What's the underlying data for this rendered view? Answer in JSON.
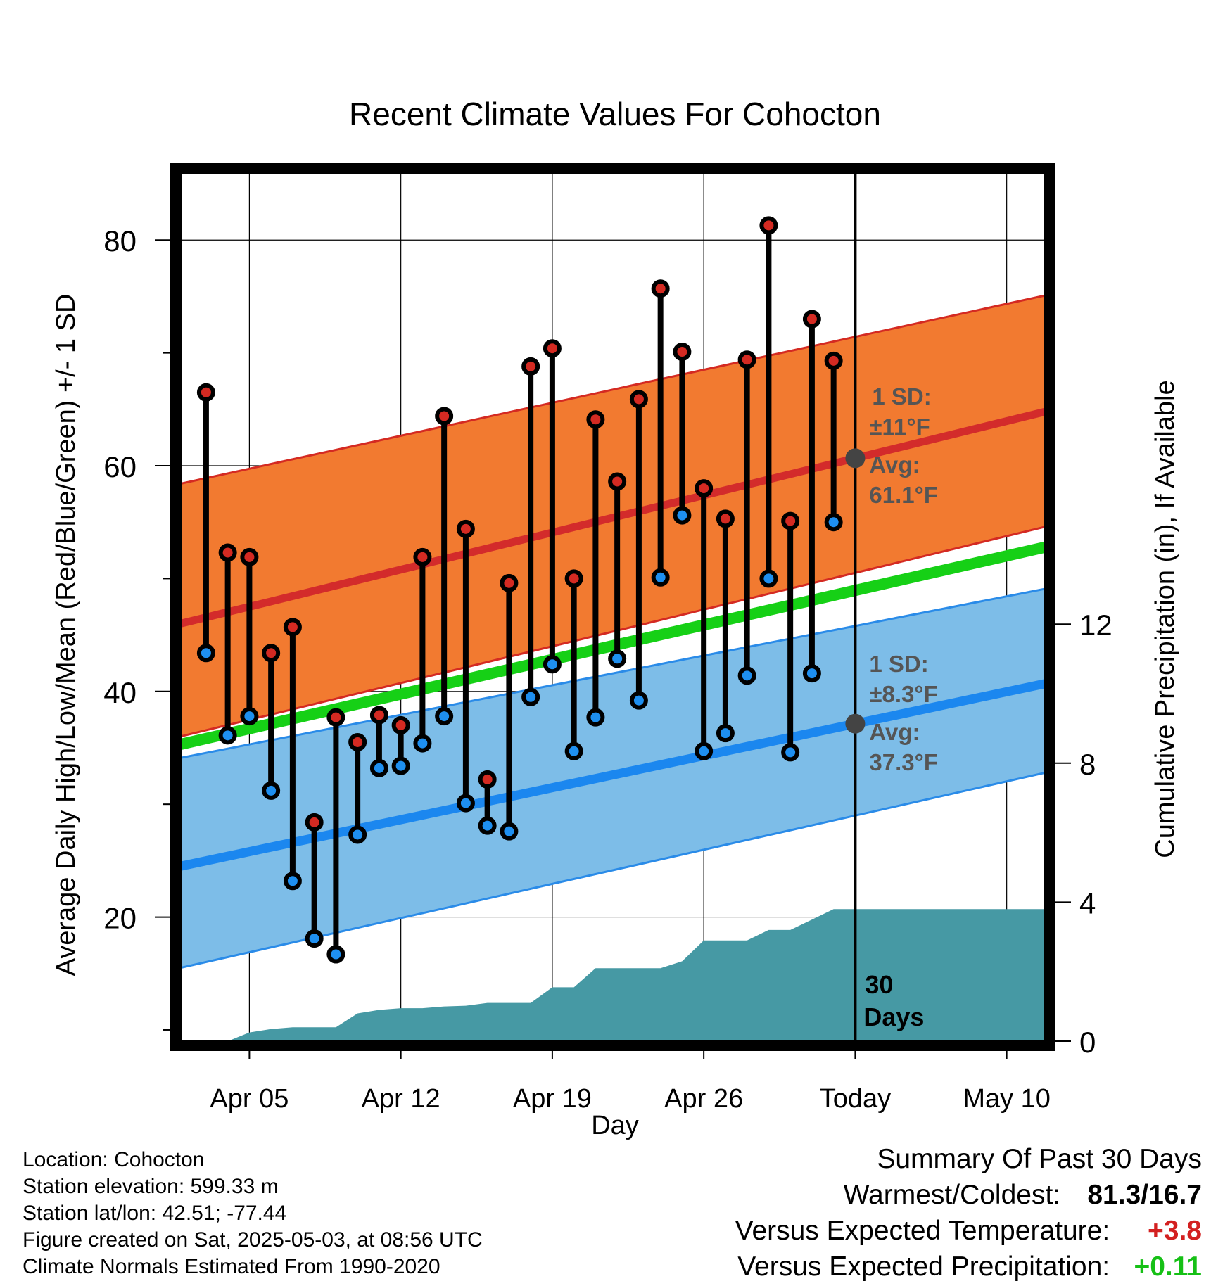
{
  "title": "Recent Climate Values For Cohocton",
  "chart_data": {
    "type": "line",
    "title": "Recent Climate Values For Cohocton",
    "xlabel": "Day",
    "ylabel_left": "Average Daily High/Low/Mean (Red/Blue/Green) +/- 1 SD",
    "ylabel_right": "Cumulative Precipitation (in), If Available",
    "x_tick_labels": [
      "Apr 05",
      "Apr 12",
      "Apr 19",
      "Apr 26",
      "Today",
      "May 10"
    ],
    "x_tick_days": [
      5,
      12,
      19,
      26,
      33,
      40
    ],
    "x_range_days": [
      1.8,
      41.8
    ],
    "today_day": 33,
    "y_left_ticks": [
      20,
      40,
      60,
      80
    ],
    "y_left_range": [
      9,
      86
    ],
    "y_right_ticks": [
      0,
      4,
      8,
      12
    ],
    "y_right_range": [
      0,
      25
    ],
    "grid": true,
    "days": [
      3,
      4,
      5,
      6,
      7,
      8,
      9,
      10,
      11,
      12,
      13,
      14,
      15,
      16,
      17,
      18,
      19,
      20,
      21,
      22,
      23,
      24,
      25,
      26,
      27,
      28,
      29,
      30,
      31,
      32
    ],
    "daily_high": [
      66.5,
      52.3,
      51.9,
      43.4,
      45.7,
      28.4,
      37.7,
      35.5,
      37.9,
      37.0,
      51.9,
      64.4,
      54.4,
      32.2,
      49.6,
      68.8,
      70.4,
      50.0,
      64.1,
      58.6,
      65.9,
      75.7,
      70.1,
      58.0,
      55.3,
      69.4,
      81.3,
      55.1,
      73.0,
      69.3
    ],
    "daily_low": [
      43.4,
      36.1,
      37.8,
      31.2,
      23.2,
      18.1,
      16.7,
      27.3,
      33.2,
      33.4,
      35.4,
      37.8,
      30.1,
      28.1,
      27.6,
      39.5,
      42.4,
      34.7,
      37.7,
      42.9,
      39.2,
      50.1,
      55.6,
      34.7,
      36.3,
      41.4,
      50.0,
      34.6,
      41.6,
      55.0
    ],
    "normal_high_band": {
      "anchor_days": [
        1.8,
        41.8
      ],
      "mean": [
        46.0,
        64.8
      ],
      "minus_1sd": [
        36.0,
        54.6
      ],
      "plus_1sd": [
        58.4,
        75.1
      ]
    },
    "normal_low_band": {
      "anchor_days": [
        1.8,
        41.8
      ],
      "mean": [
        24.5,
        40.7
      ],
      "minus_1sd": [
        15.5,
        32.8
      ],
      "plus_1sd": [
        34.1,
        49.1
      ]
    },
    "normal_mean": {
      "anchor_days": [
        1.8,
        41.8
      ],
      "values": [
        35.3,
        52.8
      ]
    },
    "cumulative_precip_in": {
      "days": [
        3,
        4,
        5,
        6,
        7,
        8,
        9,
        10,
        11,
        12,
        13,
        14,
        15,
        16,
        17,
        18,
        19,
        20,
        21,
        22,
        23,
        24,
        25,
        26,
        27,
        28,
        29,
        30,
        31,
        32,
        33,
        41.8
      ],
      "values": [
        0.0,
        0.0,
        0.25,
        0.35,
        0.4,
        0.4,
        0.4,
        0.8,
        0.9,
        0.95,
        0.95,
        1.0,
        1.02,
        1.1,
        1.1,
        1.1,
        1.55,
        1.55,
        2.1,
        2.1,
        2.1,
        2.1,
        2.3,
        2.9,
        2.9,
        2.9,
        3.2,
        3.2,
        3.5,
        3.8,
        3.8,
        3.8
      ]
    },
    "annotations": {
      "high_sd_label": "1 SD:",
      "high_sd_value": "±11°F",
      "high_avg_label": "Avg:",
      "high_avg_value": "61.1°F",
      "low_sd_label": "1 SD:",
      "low_sd_value": "±8.3°F",
      "low_avg_label": "Avg:",
      "low_avg_value": "37.3°F",
      "days_count": "30",
      "days_word": "Days"
    },
    "colors": {
      "high_band": "#f27a30",
      "high_band_edge": "#d42a22",
      "high_mean_line": "#d32b2b",
      "low_band": "#7dbde8",
      "low_band_edge": "#2a8be8",
      "low_mean_line": "#1b87ef",
      "normal_mean_line": "#16d016",
      "precip_fill": "#4699a4",
      "high_dot": "#d42a22",
      "low_dot": "#1e8ff0",
      "avg_marker": "#444444",
      "annotation_text": "#555555"
    }
  },
  "info": {
    "location": "Location: Cohocton",
    "elevation": "Station elevation: 599.33 m",
    "latlon": "Station lat/lon: 42.51; -77.44",
    "created": "Figure created on Sat, 2025-05-03, at 08:56 UTC",
    "normals": "Climate Normals Estimated From 1990-2020"
  },
  "summary": {
    "heading": "Summary Of Past 30 Days",
    "warm_cold_label": "Warmest/Coldest:",
    "warm_cold_value": "81.3/16.7",
    "temp_label": "Versus Expected Temperature:",
    "temp_value": "+3.8",
    "precip_label": "Versus Expected Precipitation:",
    "precip_value": "+0.11"
  }
}
